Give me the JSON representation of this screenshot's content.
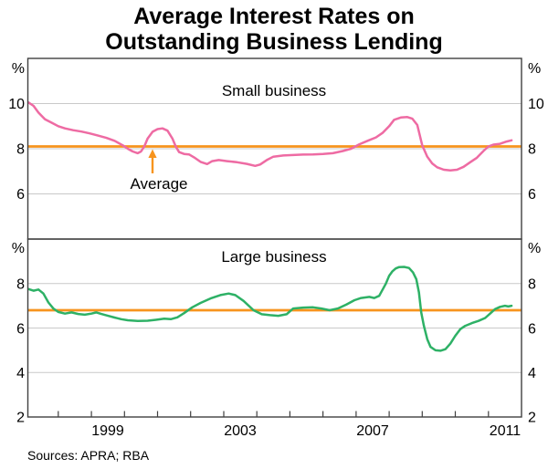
{
  "title": {
    "line1": "Average Interest Rates on",
    "line2": "Outstanding Business Lending"
  },
  "source_note": "Sources: APRA; RBA",
  "annotation": {
    "text": "Average"
  },
  "colors": {
    "small_business_line": "#ee6ba3",
    "large_business_line": "#2eb166",
    "average_line": "#f7941e",
    "grid": "#c9c9c9",
    "frame": "#404040",
    "text": "#000000"
  },
  "x_axis": {
    "range": [
      1997.08,
      2012.0
    ],
    "tick_year_first": 1998,
    "tick_year_last": 2011,
    "labels": [
      {
        "text": "1999",
        "pos": 1999.5
      },
      {
        "text": "2003",
        "pos": 2003.5
      },
      {
        "text": "2007",
        "pos": 2007.5
      },
      {
        "text": "2011",
        "pos": 2011.5
      }
    ]
  },
  "chart_data": [
    {
      "type": "line",
      "series_id": "small-business",
      "panel_title": "Small business",
      "axis_unit": "%",
      "ylim": [
        4,
        12
      ],
      "gridlines": [
        6,
        8,
        10
      ],
      "ytick_labels": [
        10,
        8,
        6
      ],
      "average_value": 8.1,
      "x": [
        1997.1,
        1997.25,
        1997.4,
        1997.6,
        1997.8,
        1998.0,
        1998.2,
        1998.45,
        1998.7,
        1998.95,
        1999.2,
        1999.45,
        1999.7,
        1999.95,
        2000.1,
        2000.25,
        2000.4,
        2000.5,
        2000.6,
        2000.7,
        2000.85,
        2001.0,
        2001.15,
        2001.3,
        2001.45,
        2001.55,
        2001.65,
        2001.8,
        2001.95,
        2002.1,
        2002.3,
        2002.5,
        2002.65,
        2002.85,
        2003.1,
        2003.4,
        2003.7,
        2003.95,
        2004.1,
        2004.3,
        2004.5,
        2004.8,
        2005.1,
        2005.4,
        2005.7,
        2006.0,
        2006.3,
        2006.6,
        2006.85,
        2007.1,
        2007.35,
        2007.6,
        2007.8,
        2008.0,
        2008.15,
        2008.35,
        2008.55,
        2008.7,
        2008.85,
        2009.0,
        2009.15,
        2009.3,
        2009.45,
        2009.65,
        2009.85,
        2010.05,
        2010.25,
        2010.45,
        2010.65,
        2010.85,
        2011.0,
        2011.15,
        2011.35,
        2011.55,
        2011.7
      ],
      "y": [
        10.05,
        9.9,
        9.6,
        9.3,
        9.15,
        9.0,
        8.9,
        8.82,
        8.76,
        8.68,
        8.58,
        8.48,
        8.35,
        8.15,
        8.0,
        7.88,
        7.8,
        7.88,
        8.1,
        8.45,
        8.75,
        8.87,
        8.9,
        8.8,
        8.45,
        8.1,
        7.85,
        7.77,
        7.75,
        7.62,
        7.42,
        7.32,
        7.45,
        7.5,
        7.45,
        7.4,
        7.33,
        7.24,
        7.3,
        7.5,
        7.65,
        7.7,
        7.72,
        7.74,
        7.75,
        7.77,
        7.8,
        7.9,
        8.0,
        8.2,
        8.35,
        8.5,
        8.7,
        9.0,
        9.28,
        9.38,
        9.4,
        9.33,
        9.05,
        8.15,
        7.65,
        7.35,
        7.18,
        7.07,
        7.04,
        7.07,
        7.2,
        7.4,
        7.6,
        7.9,
        8.1,
        8.18,
        8.22,
        8.32,
        8.37
      ]
    },
    {
      "type": "line",
      "series_id": "large-business",
      "panel_title": "Large business",
      "axis_unit": "%",
      "ylim": [
        2,
        10
      ],
      "gridlines": [
        4,
        6,
        8
      ],
      "ytick_labels": [
        8,
        6,
        4,
        2
      ],
      "average_value": 6.8,
      "x": [
        1997.1,
        1997.25,
        1997.4,
        1997.55,
        1997.7,
        1997.85,
        1998.0,
        1998.2,
        1998.4,
        1998.6,
        1998.8,
        1999.0,
        1999.15,
        1999.3,
        1999.5,
        1999.7,
        1999.9,
        2000.1,
        2000.4,
        2000.7,
        2000.95,
        2001.2,
        2001.4,
        2001.6,
        2001.8,
        2002.05,
        2002.3,
        2002.6,
        2002.9,
        2003.15,
        2003.35,
        2003.6,
        2003.9,
        2004.15,
        2004.4,
        2004.65,
        2004.9,
        2005.1,
        2005.4,
        2005.7,
        2005.95,
        2006.2,
        2006.45,
        2006.7,
        2006.95,
        2007.15,
        2007.4,
        2007.55,
        2007.7,
        2007.9,
        2008.0,
        2008.1,
        2008.2,
        2008.3,
        2008.45,
        2008.6,
        2008.72,
        2008.82,
        2008.9,
        2008.97,
        2009.05,
        2009.15,
        2009.25,
        2009.4,
        2009.55,
        2009.7,
        2009.85,
        2010.0,
        2010.15,
        2010.3,
        2010.5,
        2010.7,
        2010.9,
        2011.05,
        2011.2,
        2011.35,
        2011.5,
        2011.6,
        2011.7
      ],
      "y": [
        7.75,
        7.68,
        7.73,
        7.55,
        7.15,
        6.88,
        6.72,
        6.65,
        6.7,
        6.63,
        6.6,
        6.65,
        6.7,
        6.63,
        6.55,
        6.47,
        6.4,
        6.35,
        6.32,
        6.33,
        6.37,
        6.42,
        6.4,
        6.48,
        6.67,
        6.93,
        7.13,
        7.33,
        7.48,
        7.55,
        7.48,
        7.22,
        6.8,
        6.62,
        6.58,
        6.55,
        6.62,
        6.88,
        6.92,
        6.93,
        6.88,
        6.8,
        6.88,
        7.05,
        7.25,
        7.35,
        7.4,
        7.35,
        7.45,
        8.0,
        8.35,
        8.55,
        8.68,
        8.74,
        8.75,
        8.7,
        8.5,
        8.2,
        7.6,
        6.7,
        6.1,
        5.5,
        5.15,
        5.0,
        4.98,
        5.05,
        5.3,
        5.65,
        5.95,
        6.1,
        6.22,
        6.32,
        6.45,
        6.65,
        6.85,
        6.95,
        7.0,
        6.97,
        7.0
      ]
    }
  ]
}
